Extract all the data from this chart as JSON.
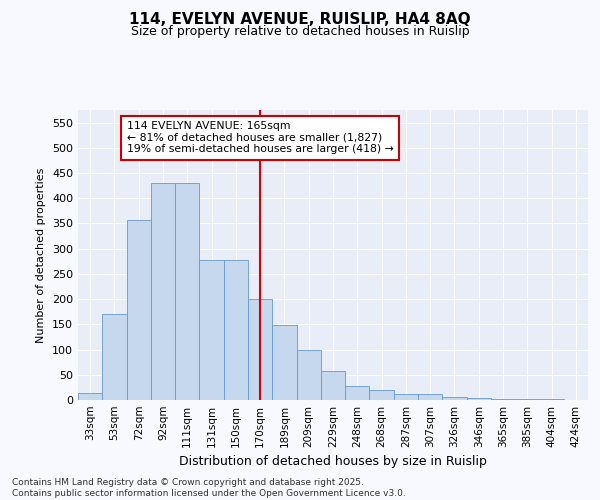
{
  "title_line1": "114, EVELYN AVENUE, RUISLIP, HA4 8AQ",
  "title_line2": "Size of property relative to detached houses in Ruislip",
  "xlabel": "Distribution of detached houses by size in Ruislip",
  "ylabel": "Number of detached properties",
  "categories": [
    "33sqm",
    "53sqm",
    "72sqm",
    "92sqm",
    "111sqm",
    "131sqm",
    "150sqm",
    "170sqm",
    "189sqm",
    "209sqm",
    "229sqm",
    "248sqm",
    "268sqm",
    "287sqm",
    "307sqm",
    "326sqm",
    "346sqm",
    "365sqm",
    "385sqm",
    "404sqm",
    "424sqm"
  ],
  "values": [
    13,
    170,
    357,
    430,
    430,
    278,
    278,
    200,
    148,
    100,
    58,
    27,
    20,
    12,
    12,
    5,
    4,
    2,
    1,
    1,
    0
  ],
  "bar_color": "#c5d8ee",
  "bar_edge_color": "#6699cc",
  "bar_width": 1.0,
  "vline_x": 7,
  "vline_color": "#dd0000",
  "annotation_text": "114 EVELYN AVENUE: 165sqm\n← 81% of detached houses are smaller (1,827)\n19% of semi-detached houses are larger (418) →",
  "annotation_box_color": "#ffffff",
  "annotation_box_edge": "#cc0000",
  "ylim": [
    0,
    575
  ],
  "yticks": [
    0,
    50,
    100,
    150,
    200,
    250,
    300,
    350,
    400,
    450,
    500,
    550
  ],
  "fig_facecolor": "#f8f8ff",
  "axes_facecolor": "#e8edf8",
  "grid_color": "#ffffff",
  "footer_line1": "Contains HM Land Registry data © Crown copyright and database right 2025.",
  "footer_line2": "Contains public sector information licensed under the Open Government Licence v3.0."
}
